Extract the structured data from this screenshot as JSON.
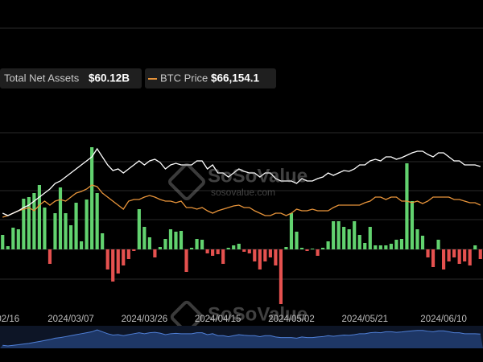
{
  "chart_data": {
    "type": "bar-line",
    "categories": [
      null,
      "02/16",
      null,
      null,
      null,
      null,
      null,
      null,
      null,
      null,
      null,
      null,
      null,
      "2024/03/07",
      null,
      null,
      null,
      null,
      null,
      null,
      null,
      null,
      null,
      null,
      null,
      null,
      null,
      "2024/03/26",
      null,
      null,
      null,
      null,
      null,
      null,
      null,
      null,
      null,
      null,
      null,
      null,
      null,
      "2024/04/15",
      null,
      null,
      null,
      null,
      null,
      null,
      null,
      null,
      null,
      null,
      null,
      null,
      null,
      "2024/05/02",
      null,
      null,
      null,
      null,
      null,
      null,
      null,
      null,
      null,
      null,
      null,
      null,
      null,
      "2024/05/21",
      null,
      null,
      null,
      null,
      null,
      null,
      null,
      null,
      null,
      null,
      null,
      null,
      null,
      null,
      "2024/06/10",
      null,
      null,
      null,
      null,
      null,
      null,
      null
    ],
    "bars": {
      "up_color": "#62d26f",
      "down_color": "#e5514f",
      "values": [
        18,
        4,
        27,
        25,
        63,
        65,
        70,
        80,
        52,
        -18,
        45,
        77,
        45,
        30,
        58,
        10,
        62,
        127,
        70,
        20,
        -25,
        -40,
        -30,
        -20,
        -12,
        -2,
        50,
        28,
        15,
        -10,
        3,
        13,
        25,
        22,
        23,
        -28,
        2,
        13,
        12,
        -5,
        -8,
        -6,
        -18,
        2,
        5,
        7,
        -3,
        -5,
        -15,
        -25,
        -15,
        -10,
        -20,
        -68,
        3,
        45,
        22,
        2,
        -2,
        1,
        -8,
        2,
        10,
        35,
        35,
        28,
        25,
        35,
        18,
        8,
        28,
        5,
        5,
        5,
        7,
        12,
        13,
        107,
        60,
        25,
        17,
        -10,
        -22,
        12,
        -25,
        -15,
        -10,
        -18,
        -15,
        -20,
        5,
        -12
      ]
    },
    "series": [
      {
        "name": "Total Net Assets",
        "last_label": "$60.12B",
        "color": "#ffffff",
        "values": [
          45,
          42,
          45,
          48,
          52,
          55,
          60,
          65,
          70,
          75,
          82,
          85,
          90,
          95,
          100,
          105,
          110,
          115,
          125,
          115,
          105,
          98,
          100,
          95,
          100,
          105,
          110,
          105,
          110,
          112,
          108,
          100,
          105,
          107,
          105,
          105,
          105,
          110,
          110,
          100,
          105,
          95,
          95,
          90,
          95,
          100,
          97,
          95,
          95,
          90,
          95,
          95,
          88,
          85,
          85,
          85,
          82,
          88,
          85,
          85,
          88,
          90,
          95,
          92,
          95,
          98,
          97,
          100,
          105,
          105,
          110,
          112,
          110,
          115,
          115,
          112,
          114,
          117,
          120,
          122,
          122,
          118,
          115,
          120,
          120,
          115,
          110,
          110,
          105,
          105,
          105,
          103
        ]
      },
      {
        "name": "BTC Price",
        "last_label": "$66,154.1",
        "color": "#e8943a",
        "values": [
          40,
          42,
          45,
          48,
          50,
          52,
          48,
          55,
          60,
          55,
          60,
          62,
          60,
          65,
          70,
          72,
          75,
          80,
          78,
          70,
          65,
          60,
          55,
          50,
          60,
          62,
          62,
          65,
          67,
          65,
          62,
          60,
          60,
          58,
          60,
          52,
          52,
          50,
          52,
          48,
          45,
          48,
          50,
          52,
          54,
          55,
          52,
          52,
          48,
          45,
          42,
          42,
          45,
          45,
          42,
          45,
          50,
          48,
          48,
          50,
          48,
          48,
          48,
          52,
          55,
          55,
          55,
          55,
          55,
          58,
          60,
          65,
          65,
          62,
          65,
          65,
          60,
          60,
          58,
          60,
          57,
          60,
          65,
          65,
          65,
          65,
          62,
          62,
          60,
          58,
          58,
          55
        ]
      }
    ],
    "ylim": [
      -100,
      150
    ],
    "watermark": {
      "brand": "SoSoValue",
      "url": "sosovalue.com"
    }
  }
}
